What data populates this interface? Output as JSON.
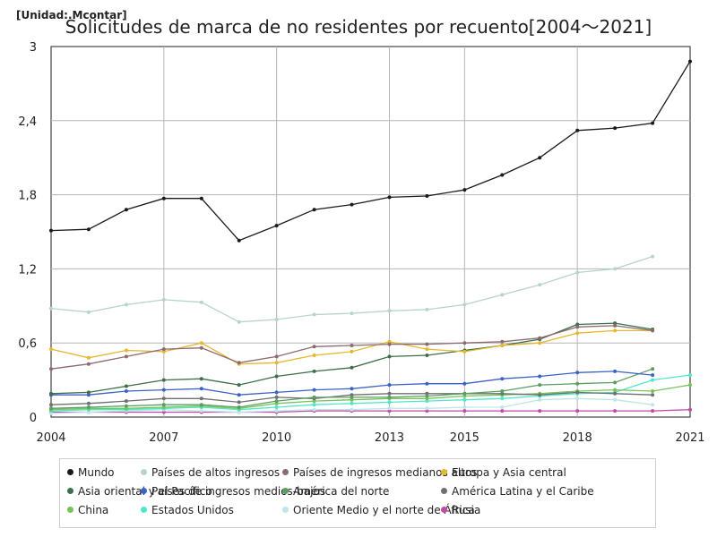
{
  "unit_label": "[Unidad:.Mcontar]",
  "title": "Solicitudes de marca de no residentes por recuento[2004～2021]",
  "chart_data": {
    "type": "line",
    "title": "Solicitudes de marca de no residentes por recuento[2004～2021]",
    "x": [
      2004,
      2005,
      2006,
      2007,
      2008,
      2009,
      2010,
      2011,
      2012,
      2013,
      2014,
      2015,
      2016,
      2017,
      2018,
      2019,
      2020,
      2021
    ],
    "x_ticks": [
      "2004",
      "2007",
      "2010",
      "2013",
      "2015",
      "2018",
      "2021"
    ],
    "y_ticks": [
      "0",
      "0,6",
      "1,2",
      "1,8",
      "2,4",
      "3"
    ],
    "ylim": [
      0,
      3
    ],
    "grid": true,
    "legend_position": "bottom",
    "series": [
      {
        "name": "Mundo",
        "color": "#1a1a1a",
        "values": [
          1.51,
          1.52,
          1.68,
          1.77,
          1.77,
          1.43,
          1.55,
          1.68,
          1.72,
          1.78,
          1.79,
          1.84,
          1.96,
          2.1,
          2.32,
          2.34,
          2.38,
          2.88
        ]
      },
      {
        "name": "Países de altos ingresos",
        "color": "#b8d3cb",
        "values": [
          0.88,
          0.85,
          0.91,
          0.95,
          0.93,
          0.77,
          0.79,
          0.83,
          0.84,
          0.86,
          0.87,
          0.91,
          0.99,
          1.07,
          1.17,
          1.2,
          1.3,
          null
        ]
      },
      {
        "name": "Países de ingresos medianos altos",
        "color": "#8c6a70",
        "values": [
          0.39,
          0.43,
          0.49,
          0.55,
          0.56,
          0.44,
          0.49,
          0.57,
          0.58,
          0.59,
          0.59,
          0.6,
          0.61,
          0.64,
          0.73,
          0.74,
          0.7,
          null
        ]
      },
      {
        "name": "Europa y Asia central",
        "color": "#e6b82e",
        "values": [
          0.55,
          0.48,
          0.54,
          0.53,
          0.6,
          0.43,
          0.44,
          0.5,
          0.53,
          0.61,
          0.55,
          0.53,
          0.58,
          0.6,
          0.68,
          0.7,
          0.7,
          null
        ]
      },
      {
        "name": "Asia oriental y el Pacífico",
        "color": "#3f6e4a",
        "values": [
          0.19,
          0.2,
          0.25,
          0.3,
          0.31,
          0.26,
          0.33,
          0.37,
          0.4,
          0.49,
          0.5,
          0.54,
          0.58,
          0.63,
          0.75,
          0.76,
          0.71,
          null
        ]
      },
      {
        "name": "Países de ingresos medios-bajos",
        "color": "#3b62c4",
        "values": [
          0.18,
          0.18,
          0.21,
          0.22,
          0.23,
          0.18,
          0.2,
          0.22,
          0.23,
          0.26,
          0.27,
          0.27,
          0.31,
          0.33,
          0.36,
          0.37,
          0.34,
          null
        ]
      },
      {
        "name": "América del norte",
        "color": "#5a9e63",
        "values": [
          0.07,
          0.08,
          0.09,
          0.1,
          0.1,
          0.08,
          0.13,
          0.16,
          0.16,
          0.16,
          0.17,
          0.19,
          0.21,
          0.26,
          0.27,
          0.28,
          0.39,
          null
        ]
      },
      {
        "name": "América Latina y el Caribe",
        "color": "#707070",
        "values": [
          0.1,
          0.11,
          0.13,
          0.15,
          0.15,
          0.12,
          0.16,
          0.15,
          0.18,
          0.19,
          0.19,
          0.19,
          0.19,
          0.18,
          0.2,
          0.19,
          0.18,
          null
        ]
      },
      {
        "name": "China",
        "color": "#78c25a",
        "values": [
          0.06,
          0.07,
          0.07,
          0.08,
          0.09,
          0.07,
          0.11,
          0.13,
          0.14,
          0.15,
          0.15,
          0.17,
          0.18,
          0.19,
          0.21,
          0.22,
          0.21,
          0.26
        ]
      },
      {
        "name": "Estados Unidos",
        "color": "#4ee8c8",
        "values": [
          0.05,
          0.06,
          0.06,
          0.07,
          0.08,
          0.06,
          0.08,
          0.1,
          0.11,
          0.12,
          0.13,
          0.14,
          0.15,
          0.17,
          0.19,
          0.2,
          0.3,
          0.34
        ]
      },
      {
        "name": "Oriente Medio y el norte de África",
        "color": "#bfe6e6",
        "values": [
          0.03,
          0.04,
          0.05,
          0.06,
          0.05,
          0.04,
          0.05,
          0.06,
          0.06,
          0.07,
          0.07,
          0.08,
          0.08,
          0.14,
          0.15,
          0.14,
          0.1,
          null
        ]
      },
      {
        "name": "Rusia",
        "color": "#c24aa8",
        "values": [
          0.04,
          0.04,
          0.04,
          0.04,
          0.04,
          0.04,
          0.04,
          0.05,
          0.05,
          0.05,
          0.05,
          0.05,
          0.05,
          0.05,
          0.05,
          0.05,
          0.05,
          0.06
        ]
      }
    ]
  }
}
